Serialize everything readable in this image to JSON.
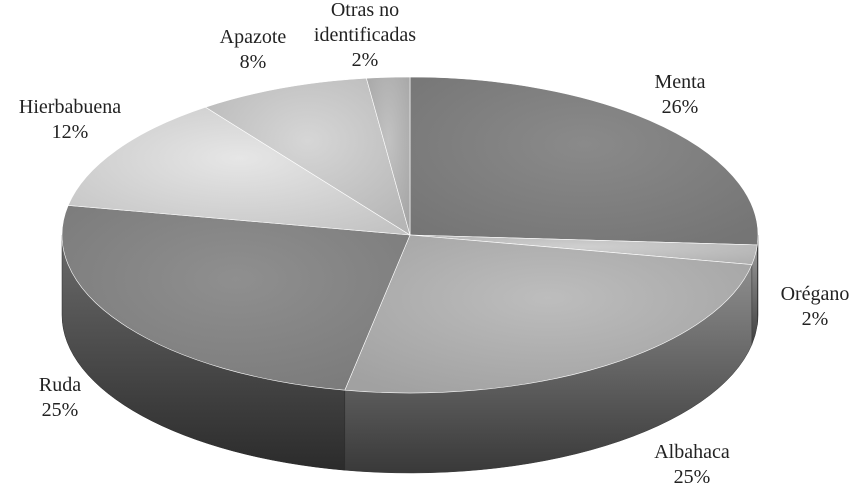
{
  "chart_data": {
    "type": "pie3d",
    "categories": [
      "Menta",
      "Orégano",
      "Albahaca",
      "Ruda",
      "Hierbabuena",
      "Apazote",
      "Otras no identificadas"
    ],
    "values": [
      26,
      2,
      25,
      25,
      12,
      8,
      2
    ],
    "value_labels": [
      "26%",
      "2%",
      "25%",
      "25%",
      "12%",
      "8%",
      "2%"
    ],
    "colors": [
      "#8a8a8a",
      "#cfcfcf",
      "#bdbdbd",
      "#8f8f8f",
      "#e6e6e6",
      "#d6d6d6",
      "#c2c2c2"
    ]
  }
}
